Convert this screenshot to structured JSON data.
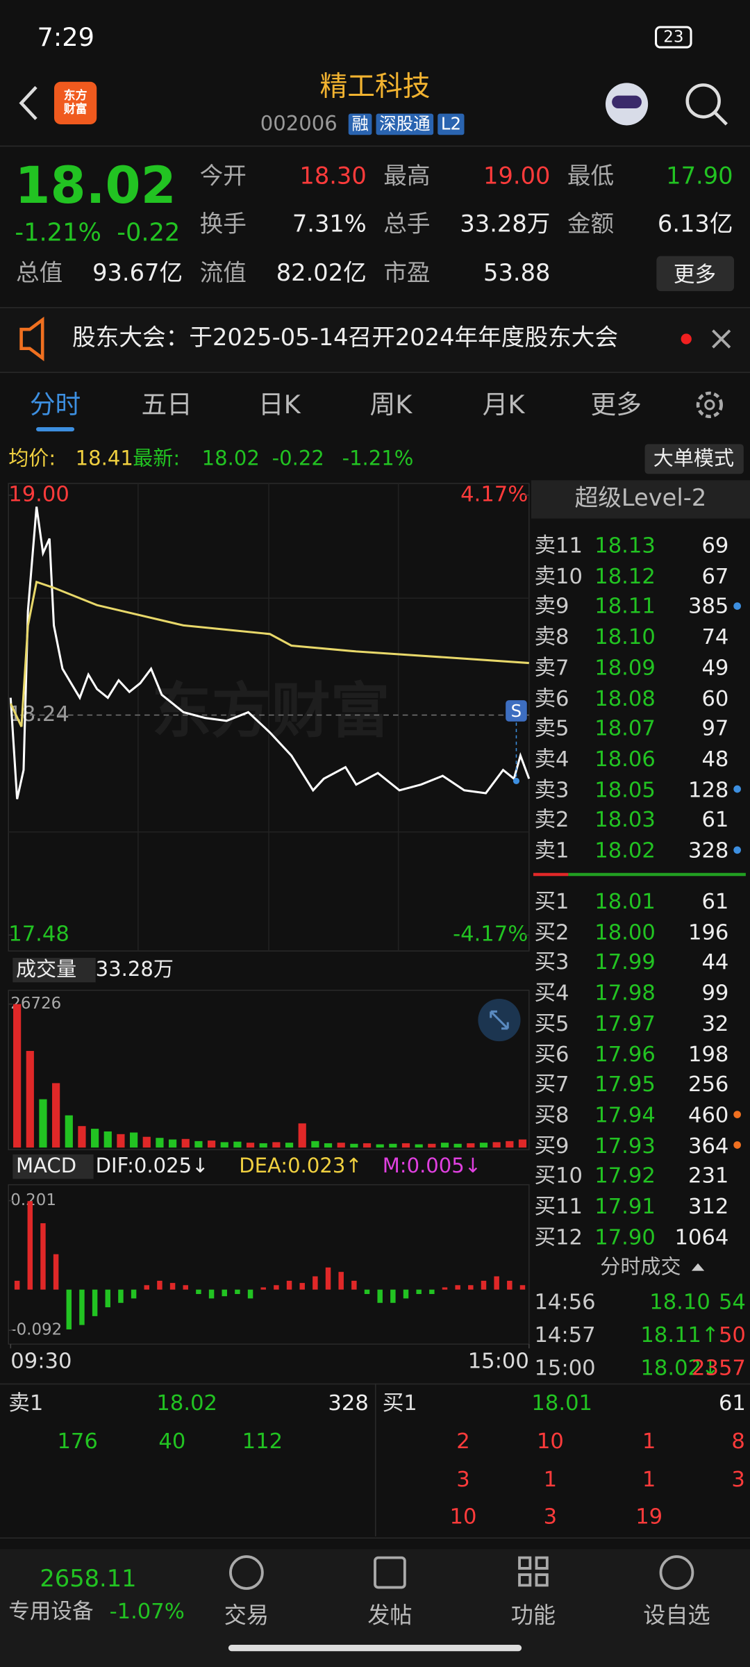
{
  "status": {
    "time": "7:29",
    "battery": "23"
  },
  "header": {
    "logo": "东方财富",
    "title": "精工科技",
    "code": "002006",
    "tags": [
      "融",
      "深股通",
      "L2"
    ]
  },
  "quote": {
    "price": "18.02",
    "change_pct": "-1.21%",
    "change": "-0.22",
    "more": "更多",
    "fields": [
      {
        "label": "今开",
        "value": "18.30",
        "color": "#ff3b3b"
      },
      {
        "label": "最高",
        "value": "19.00",
        "color": "#ff3b3b"
      },
      {
        "label": "最低",
        "value": "17.90",
        "color": "#22c322"
      },
      {
        "label": "换手",
        "value": "7.31%",
        "color": "#eeeeee"
      },
      {
        "label": "总手",
        "value": "33.28万",
        "color": "#eeeeee"
      },
      {
        "label": "金额",
        "value": "6.13亿",
        "color": "#eeeeee"
      },
      {
        "label": "总值",
        "value": "93.67亿",
        "color": "#eeeeee"
      },
      {
        "label": "流值",
        "value": "82.02亿",
        "color": "#eeeeee"
      },
      {
        "label": "市盈",
        "value": "53.88",
        "color": "#eeeeee"
      }
    ]
  },
  "notice": {
    "text": "股东大会：于2025-05-14召开2024年年度股东大会"
  },
  "tabs": {
    "items": [
      "分时",
      "五日",
      "日K",
      "周K",
      "月K",
      "更多"
    ],
    "active": 0
  },
  "info": {
    "avg_label": "均价:",
    "avg": "18.41",
    "latest_label": "最新:",
    "latest": "18.02",
    "change": "-0.22",
    "change_pct": "-1.21%",
    "mode": "大单模式"
  },
  "chart_data": [
    {
      "type": "line",
      "watermark": "东方财富",
      "marker": "S",
      "xlim": [
        0,
        240
      ],
      "xticks": [
        {
          "value": 0,
          "label": "09:30"
        },
        {
          "value": 240,
          "label": "15:00"
        }
      ],
      "ylim": [
        17.48,
        19.0
      ],
      "yticks": [
        {
          "value": 19.0,
          "label": "19.00"
        },
        {
          "value": 18.24,
          "label": "18.24"
        },
        {
          "value": 17.48,
          "label": "17.48"
        }
      ],
      "y2lim": [
        -4.17,
        4.17
      ],
      "y2ticks": [
        {
          "value": 4.17,
          "label": "4.17%"
        },
        {
          "value": -4.17,
          "label": "-4.17%"
        }
      ],
      "series": [
        {
          "color": "#ffffff",
          "x": [
            0,
            3,
            6,
            8,
            12,
            15,
            18,
            20,
            24,
            28,
            32,
            36,
            40,
            45,
            50,
            55,
            60,
            65,
            70,
            75,
            80,
            90,
            100,
            110,
            120,
            130,
            140,
            145,
            155,
            160,
            170,
            180,
            190,
            200,
            210,
            220,
            228,
            233,
            236,
            240
          ],
          "values": [
            18.3,
            17.95,
            18.05,
            18.6,
            18.96,
            18.8,
            18.85,
            18.55,
            18.4,
            18.35,
            18.3,
            18.38,
            18.33,
            18.3,
            18.36,
            18.32,
            18.35,
            18.4,
            18.31,
            18.28,
            18.25,
            18.23,
            18.22,
            18.25,
            18.18,
            18.1,
            17.98,
            18.02,
            18.06,
            18.0,
            18.04,
            17.98,
            18.0,
            18.03,
            17.98,
            17.97,
            18.05,
            18.02,
            18.1,
            18.02
          ]
        },
        {
          "color": "#e8d86a",
          "x": [
            0,
            5,
            8,
            12,
            20,
            40,
            80,
            120,
            130,
            160,
            200,
            240
          ],
          "values": [
            18.28,
            18.2,
            18.55,
            18.7,
            18.68,
            18.62,
            18.55,
            18.52,
            18.48,
            18.46,
            18.44,
            18.42
          ]
        }
      ]
    },
    {
      "type": "bar",
      "label": "成交量",
      "total": "33.28万",
      "ylim": [
        0,
        26726
      ],
      "yticks": [
        26726
      ],
      "values": [
        26726,
        18000,
        9000,
        12000,
        6000,
        4000,
        3500,
        3000,
        2500,
        2800,
        2000,
        1800,
        1500,
        1600,
        1200,
        1300,
        1000,
        1100,
        900,
        800,
        1000,
        900,
        4500,
        1200,
        800,
        900,
        700,
        800,
        600,
        700,
        800,
        600,
        700,
        900,
        700,
        800,
        900,
        1000,
        1200,
        1500
      ],
      "colors": [
        "#e02828",
        "#e02828",
        "#22c322",
        "#e02828",
        "#22c322",
        "#e02828",
        "#22c322",
        "#22c322",
        "#e02828",
        "#22c322",
        "#e02828",
        "#22c322",
        "#22c322",
        "#e02828",
        "#22c322",
        "#e02828",
        "#22c322",
        "#22c322",
        "#e02828",
        "#22c322",
        "#e02828",
        "#22c322",
        "#e02828",
        "#22c322",
        "#22c322",
        "#e02828",
        "#22c322",
        "#e02828",
        "#22c322",
        "#22c322",
        "#e02828",
        "#22c322",
        "#e02828",
        "#22c322",
        "#22c322",
        "#e02828",
        "#22c322",
        "#e02828",
        "#e02828",
        "#e02828"
      ]
    },
    {
      "type": "bar",
      "label": "MACD",
      "indicators": [
        {
          "text": "DIF:0.025↓",
          "color": "#eeeeee"
        },
        {
          "text": "DEA:0.023↑",
          "color": "#f0d040"
        },
        {
          "text": "M:0.005↓",
          "color": "#e040e0"
        }
      ],
      "ylim": [
        -0.092,
        0.201
      ],
      "yticks": [
        0.201,
        -0.092
      ],
      "values": [
        0.02,
        0.2,
        0.15,
        0.08,
        -0.09,
        -0.08,
        -0.06,
        -0.04,
        -0.03,
        -0.02,
        0.01,
        0.02,
        0.015,
        0.01,
        -0.01,
        -0.02,
        -0.015,
        -0.01,
        -0.02,
        0.005,
        0.01,
        0.02,
        0.015,
        0.03,
        0.05,
        0.04,
        0.02,
        -0.01,
        -0.03,
        -0.03,
        -0.02,
        -0.01,
        -0.01,
        0.005,
        0.01,
        0.01,
        0.02,
        0.03,
        0.02,
        0.01
      ]
    }
  ],
  "orderbook": {
    "title": "超级Level-2",
    "asks": [
      {
        "label": "卖11",
        "price": "18.13",
        "volume": "69"
      },
      {
        "label": "卖10",
        "price": "18.12",
        "volume": "67"
      },
      {
        "label": "卖9",
        "price": "18.11",
        "volume": "385",
        "dot": "#3d8fe0"
      },
      {
        "label": "卖8",
        "price": "18.10",
        "volume": "74"
      },
      {
        "label": "卖7",
        "price": "18.09",
        "volume": "49"
      },
      {
        "label": "卖6",
        "price": "18.08",
        "volume": "60"
      },
      {
        "label": "卖5",
        "price": "18.07",
        "volume": "97"
      },
      {
        "label": "卖4",
        "price": "18.06",
        "volume": "48"
      },
      {
        "label": "卖3",
        "price": "18.05",
        "volume": "128",
        "dot": "#3d8fe0"
      },
      {
        "label": "卖2",
        "price": "18.03",
        "volume": "61"
      },
      {
        "label": "卖1",
        "price": "18.02",
        "volume": "328",
        "dot": "#3d8fe0"
      }
    ],
    "bids": [
      {
        "label": "买1",
        "price": "18.01",
        "volume": "61"
      },
      {
        "label": "买2",
        "price": "18.00",
        "volume": "196"
      },
      {
        "label": "买3",
        "price": "17.99",
        "volume": "44"
      },
      {
        "label": "买4",
        "price": "17.98",
        "volume": "99"
      },
      {
        "label": "买5",
        "price": "17.97",
        "volume": "32"
      },
      {
        "label": "买6",
        "price": "17.96",
        "volume": "198"
      },
      {
        "label": "买7",
        "price": "17.95",
        "volume": "256"
      },
      {
        "label": "买8",
        "price": "17.94",
        "volume": "460",
        "dot": "#f07020"
      },
      {
        "label": "买9",
        "price": "17.93",
        "volume": "364",
        "dot": "#f07020"
      },
      {
        "label": "买10",
        "price": "17.92",
        "volume": "231"
      },
      {
        "label": "买11",
        "price": "17.91",
        "volume": "312"
      },
      {
        "label": "买12",
        "price": "17.90",
        "volume": "1064"
      }
    ]
  },
  "trades": {
    "title": "分时成交",
    "rows": [
      {
        "time": "14:56",
        "price": "18.10",
        "volume": "54",
        "vcolor": "#22c322"
      },
      {
        "time": "14:57",
        "price": "18.11↑",
        "volume": "50",
        "vcolor": "#ff3b3b"
      },
      {
        "time": "15:00",
        "price": "18.02↓",
        "volume": "2357",
        "vcolor": "#ff3b3b"
      }
    ]
  },
  "summary": {
    "ask": {
      "label": "卖1",
      "price": "18.02",
      "volume": "328",
      "orders": [
        "176",
        "40",
        "112"
      ]
    },
    "bid": {
      "label": "买1",
      "price": "18.01",
      "volume": "61",
      "orders": [
        [
          "2",
          "10",
          "1",
          "8"
        ],
        [
          "3",
          "1",
          "1",
          "3"
        ],
        [
          "10",
          "3",
          "19"
        ]
      ]
    }
  },
  "nav": {
    "index_value": "2658.11",
    "index_name": "专用设备",
    "index_change": "-1.07%",
    "items": [
      "交易",
      "发帖",
      "功能",
      "设自选"
    ]
  }
}
